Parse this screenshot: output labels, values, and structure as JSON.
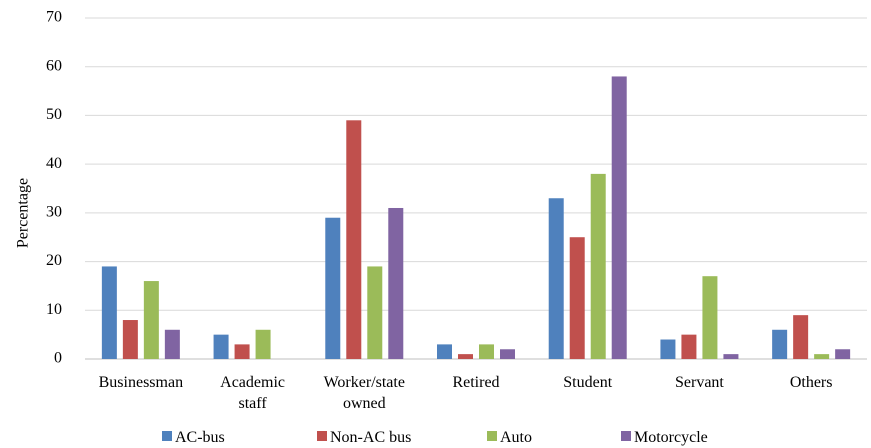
{
  "chart_data": {
    "type": "bar",
    "title": "",
    "xlabel": "",
    "ylabel": "Percentage",
    "ylim": [
      0,
      70
    ],
    "yticks": [
      0,
      10,
      20,
      30,
      40,
      50,
      60,
      70
    ],
    "grid": true,
    "legend": "bottom",
    "categories": [
      [
        "Businessman"
      ],
      [
        "Academic",
        "staff"
      ],
      [
        "Worker/state",
        "owned"
      ],
      [
        "Retired"
      ],
      [
        "Student"
      ],
      [
        "Servant"
      ],
      [
        "Others"
      ]
    ],
    "series": [
      {
        "name": "AC-bus",
        "color": "#4f81bd",
        "values": [
          19,
          5,
          29,
          3,
          33,
          4,
          6
        ]
      },
      {
        "name": "Non-AC bus",
        "color": "#c0504d",
        "values": [
          8,
          3,
          49,
          1,
          25,
          5,
          9
        ]
      },
      {
        "name": "Auto",
        "color": "#9bbb59",
        "values": [
          16,
          6,
          19,
          3,
          38,
          17,
          1
        ]
      },
      {
        "name": "Motorcycle",
        "color": "#8064a2",
        "values": [
          6,
          0,
          31,
          2,
          58,
          1,
          2
        ]
      }
    ]
  }
}
